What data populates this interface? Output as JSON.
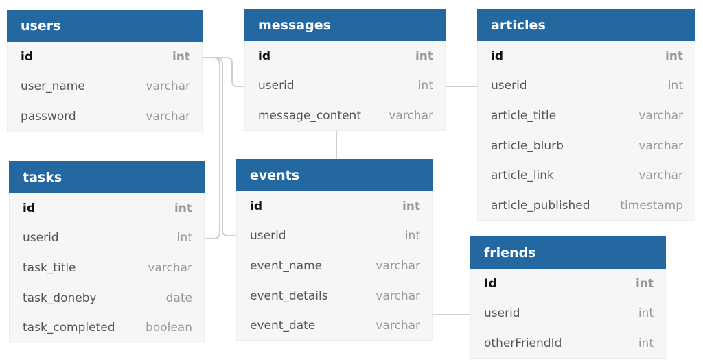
{
  "tables": {
    "users": {
      "title": "users",
      "columns": [
        {
          "name": "id",
          "type": "int"
        },
        {
          "name": "user_name",
          "type": "varchar"
        },
        {
          "name": "password",
          "type": "varchar"
        }
      ]
    },
    "messages": {
      "title": "messages",
      "columns": [
        {
          "name": "id",
          "type": "int"
        },
        {
          "name": "userid",
          "type": "int"
        },
        {
          "name": "message_content",
          "type": "varchar"
        }
      ]
    },
    "articles": {
      "title": "articles",
      "columns": [
        {
          "name": "id",
          "type": "int"
        },
        {
          "name": "userid",
          "type": "int"
        },
        {
          "name": "article_title",
          "type": "varchar"
        },
        {
          "name": "article_blurb",
          "type": "varchar"
        },
        {
          "name": "article_link",
          "type": "varchar"
        },
        {
          "name": "article_published",
          "type": "timestamp"
        }
      ]
    },
    "tasks": {
      "title": "tasks",
      "columns": [
        {
          "name": "id",
          "type": "int"
        },
        {
          "name": "userid",
          "type": "int"
        },
        {
          "name": "task_title",
          "type": "varchar"
        },
        {
          "name": "task_doneby",
          "type": "date"
        },
        {
          "name": "task_completed",
          "type": "boolean"
        }
      ]
    },
    "events": {
      "title": "events",
      "columns": [
        {
          "name": "id",
          "type": "int"
        },
        {
          "name": "userid",
          "type": "int"
        },
        {
          "name": "event_name",
          "type": "varchar"
        },
        {
          "name": "event_details",
          "type": "varchar"
        },
        {
          "name": "event_date",
          "type": "varchar"
        }
      ]
    },
    "friends": {
      "title": "friends",
      "columns": [
        {
          "name": "Id",
          "type": "int"
        },
        {
          "name": "userid",
          "type": "int"
        },
        {
          "name": "otherFriendId",
          "type": "int"
        }
      ]
    }
  },
  "colors": {
    "header": "#2468a2",
    "header_text": "#ffffff",
    "body": "#f6f6f6",
    "connector": "#cfcfcf"
  }
}
